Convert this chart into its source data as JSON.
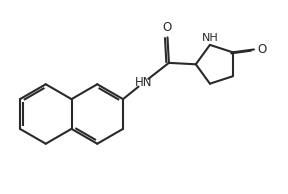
{
  "bg_color": "#ffffff",
  "line_color": "#2a2a2a",
  "line_width": 1.5,
  "font_size": 8.5,
  "figsize": [
    2.88,
    1.94
  ],
  "dpi": 100,
  "xlim": [
    0,
    10
  ],
  "ylim": [
    0,
    6.8
  ]
}
